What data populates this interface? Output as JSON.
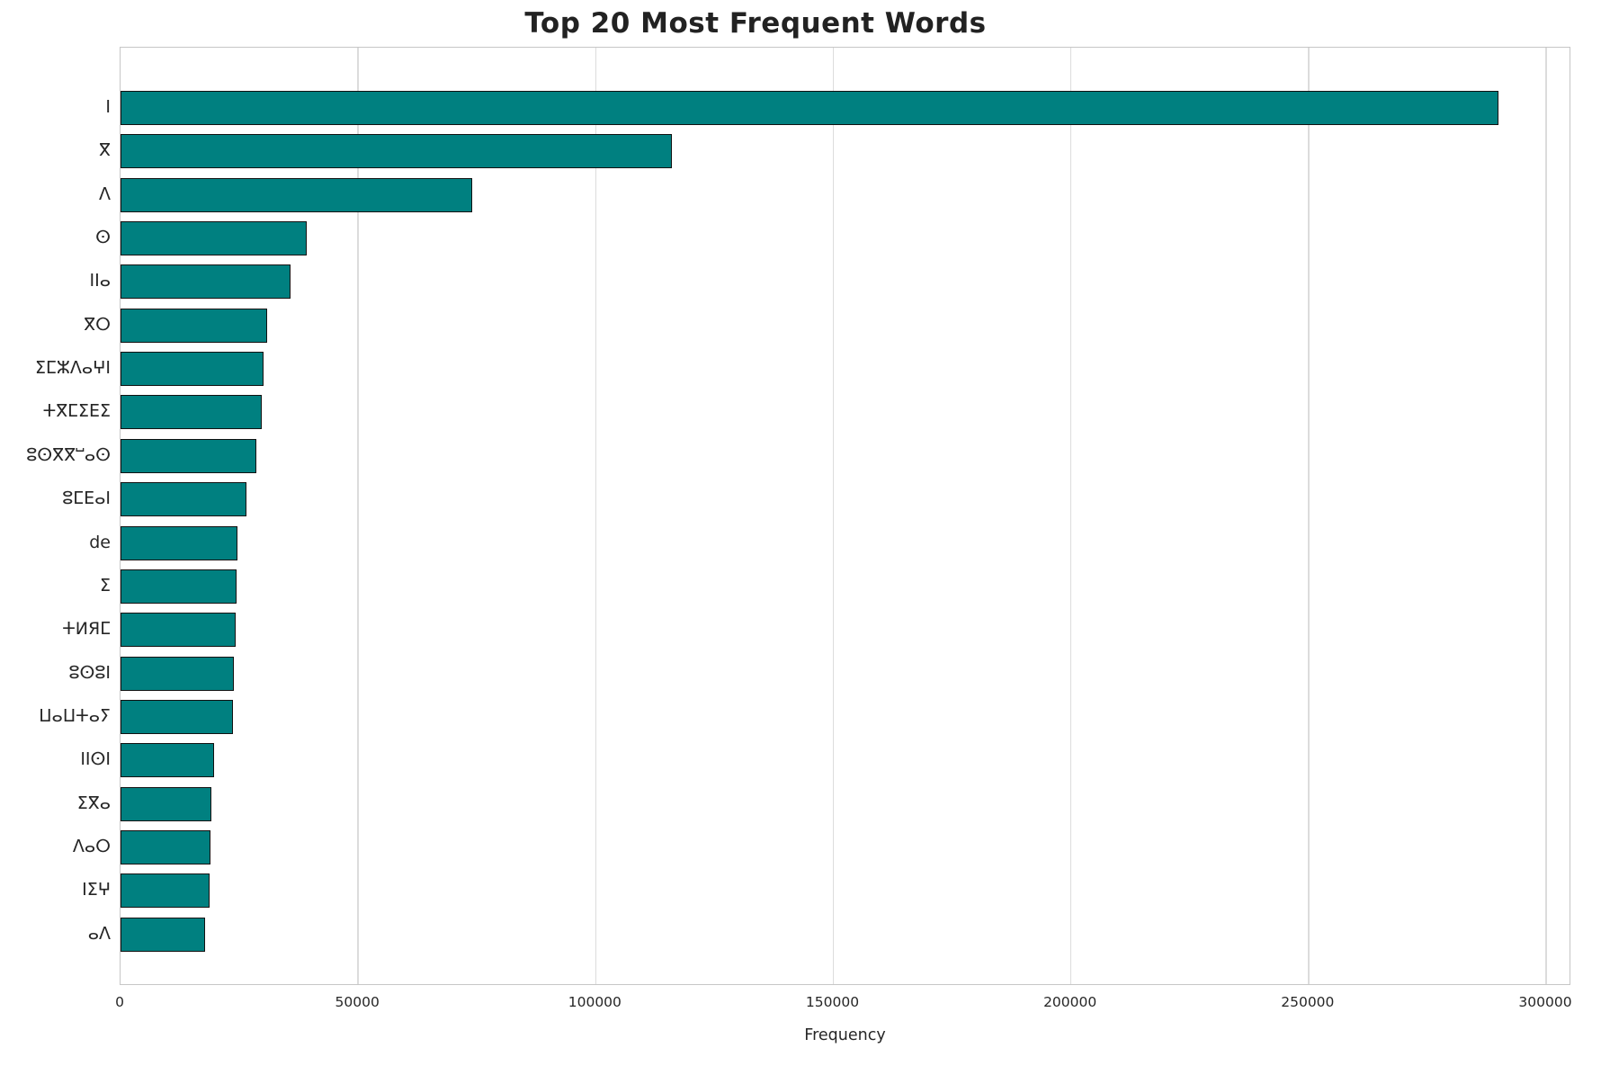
{
  "figure": {
    "title": "Top 20 Most Frequent Words",
    "xlabel": "Frequency"
  },
  "chart_data": {
    "type": "bar",
    "orientation": "horizontal",
    "title": "Top 20 Most Frequent Words",
    "xlabel": "Frequency",
    "ylabel": "",
    "categories": [
      "ⵏ",
      "ⴳ",
      "ⴷ",
      "ⵙ",
      "ⵏⵏⴰ",
      "ⴳⵔ",
      "ⵉⵎⵣⴷⴰⵖⵏ",
      "ⵜⴳⵎⵉⴹⵉ",
      "ⵓⵙⴳⴳⵯⴰⵙ",
      "ⵓⵎⴹⴰⵏ",
      "de",
      "ⵉ",
      "ⵜИЯⵎ",
      "ⵓⵙⵓⵏ",
      "ⵡⴰⵡⵜⴰⵢ",
      "ⵏⵏⵙⵏ",
      "ⵉⴳⴰ",
      "ⴷⴰⵔ",
      "ⵏⵉⵖ",
      "ⴰⴷ"
    ],
    "values": [
      290000,
      116000,
      74000,
      39200,
      35800,
      30900,
      30100,
      29700,
      28600,
      26500,
      24600,
      24400,
      24200,
      23900,
      23700,
      19700,
      19100,
      18900,
      18700,
      17800
    ],
    "xlim": [
      0,
      300000
    ],
    "xticks": [
      0,
      50000,
      100000,
      150000,
      200000,
      250000,
      300000
    ],
    "grid": "vertical",
    "legend": "none",
    "bar_color": "#008080",
    "bar_edge_color": "#111111",
    "gridline_color": "#dcdcdc"
  }
}
